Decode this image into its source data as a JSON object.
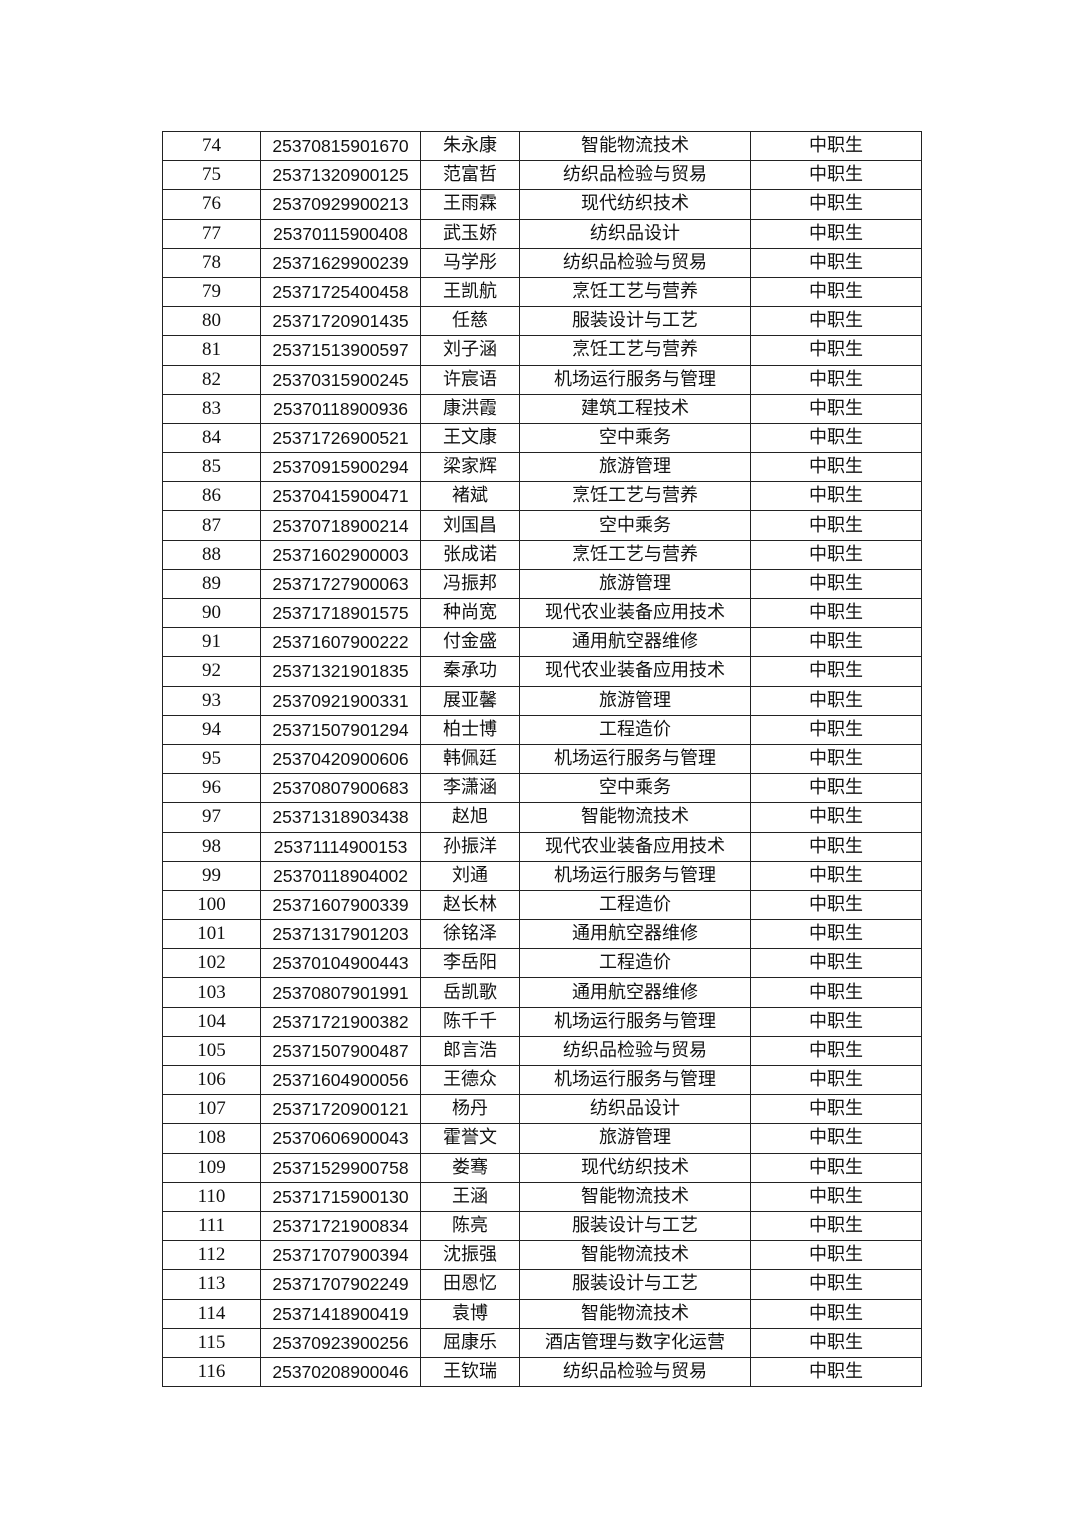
{
  "table": {
    "rows": [
      [
        "74",
        "25370815901670",
        "朱永康",
        "智能物流技术",
        "中职生"
      ],
      [
        "75",
        "25371320900125",
        "范富哲",
        "纺织品检验与贸易",
        "中职生"
      ],
      [
        "76",
        "25370929900213",
        "王雨霖",
        "现代纺织技术",
        "中职生"
      ],
      [
        "77",
        "25370115900408",
        "武玉娇",
        "纺织品设计",
        "中职生"
      ],
      [
        "78",
        "25371629900239",
        "马学彤",
        "纺织品检验与贸易",
        "中职生"
      ],
      [
        "79",
        "25371725400458",
        "王凯航",
        "烹饪工艺与营养",
        "中职生"
      ],
      [
        "80",
        "25371720901435",
        "任慈",
        "服装设计与工艺",
        "中职生"
      ],
      [
        "81",
        "25371513900597",
        "刘子涵",
        "烹饪工艺与营养",
        "中职生"
      ],
      [
        "82",
        "25370315900245",
        "许宸语",
        "机场运行服务与管理",
        "中职生"
      ],
      [
        "83",
        "25370118900936",
        "康洪霞",
        "建筑工程技术",
        "中职生"
      ],
      [
        "84",
        "25371726900521",
        "王文康",
        "空中乘务",
        "中职生"
      ],
      [
        "85",
        "25370915900294",
        "梁家辉",
        "旅游管理",
        "中职生"
      ],
      [
        "86",
        "25370415900471",
        "褚斌",
        "烹饪工艺与营养",
        "中职生"
      ],
      [
        "87",
        "25370718900214",
        "刘国昌",
        "空中乘务",
        "中职生"
      ],
      [
        "88",
        "25371602900003",
        "张成诺",
        "烹饪工艺与营养",
        "中职生"
      ],
      [
        "89",
        "25371727900063",
        "冯振邦",
        "旅游管理",
        "中职生"
      ],
      [
        "90",
        "25371718901575",
        "种尚宽",
        "现代农业装备应用技术",
        "中职生"
      ],
      [
        "91",
        "25371607900222",
        "付金盛",
        "通用航空器维修",
        "中职生"
      ],
      [
        "92",
        "25371321901835",
        "秦承功",
        "现代农业装备应用技术",
        "中职生"
      ],
      [
        "93",
        "25370921900331",
        "展亚馨",
        "旅游管理",
        "中职生"
      ],
      [
        "94",
        "25371507901294",
        "柏士博",
        "工程造价",
        "中职生"
      ],
      [
        "95",
        "25370420900606",
        "韩佩廷",
        "机场运行服务与管理",
        "中职生"
      ],
      [
        "96",
        "25370807900683",
        "李潇涵",
        "空中乘务",
        "中职生"
      ],
      [
        "97",
        "25371318903438",
        "赵旭",
        "智能物流技术",
        "中职生"
      ],
      [
        "98",
        "25371114900153",
        "孙振洋",
        "现代农业装备应用技术",
        "中职生"
      ],
      [
        "99",
        "25370118904002",
        "刘通",
        "机场运行服务与管理",
        "中职生"
      ],
      [
        "100",
        "25371607900339",
        "赵长林",
        "工程造价",
        "中职生"
      ],
      [
        "101",
        "25371317901203",
        "徐铭泽",
        "通用航空器维修",
        "中职生"
      ],
      [
        "102",
        "25370104900443",
        "李岳阳",
        "工程造价",
        "中职生"
      ],
      [
        "103",
        "25370807901991",
        "岳凯歌",
        "通用航空器维修",
        "中职生"
      ],
      [
        "104",
        "25371721900382",
        "陈千千",
        "机场运行服务与管理",
        "中职生"
      ],
      [
        "105",
        "25371507900487",
        "郎言浩",
        "纺织品检验与贸易",
        "中职生"
      ],
      [
        "106",
        "25371604900056",
        "王德众",
        "机场运行服务与管理",
        "中职生"
      ],
      [
        "107",
        "25371720900121",
        "杨丹",
        "纺织品设计",
        "中职生"
      ],
      [
        "108",
        "25370606900043",
        "霍誉文",
        "旅游管理",
        "中职生"
      ],
      [
        "109",
        "25371529900758",
        "娄骞",
        "现代纺织技术",
        "中职生"
      ],
      [
        "110",
        "25371715900130",
        "王涵",
        "智能物流技术",
        "中职生"
      ],
      [
        "111",
        "25371721900834",
        "陈亮",
        "服装设计与工艺",
        "中职生"
      ],
      [
        "112",
        "25371707900394",
        "沈振强",
        "智能物流技术",
        "中职生"
      ],
      [
        "113",
        "25371707902249",
        "田恩忆",
        "服装设计与工艺",
        "中职生"
      ],
      [
        "114",
        "25371418900419",
        "袁博",
        "智能物流技术",
        "中职生"
      ],
      [
        "115",
        "25370923900256",
        "屈康乐",
        "酒店管理与数字化运营",
        "中职生"
      ],
      [
        "116",
        "25370208900046",
        "王钦瑞",
        "纺织品检验与贸易",
        "中职生"
      ]
    ]
  }
}
